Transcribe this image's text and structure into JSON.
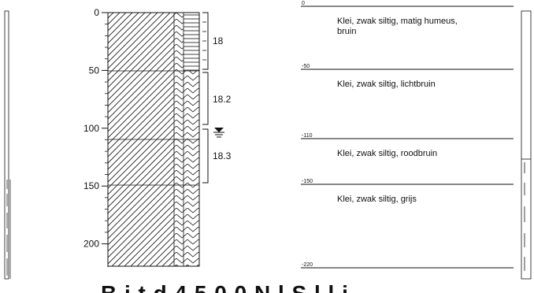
{
  "boring_log": {
    "depth_ticks": [
      "0",
      "50",
      "100",
      "150",
      "200"
    ],
    "samples": [
      {
        "label": "18"
      },
      {
        "label": "18.2"
      },
      {
        "label": "18.3"
      }
    ],
    "groundwater_symbol": "water-table-icon",
    "layers": [
      {
        "top": "0",
        "bottom_depth": 50,
        "description_line1": "Klei, zwak siltig, matig humeus,",
        "description_line2": "bruin"
      },
      {
        "top": "-50",
        "bottom_depth": 110,
        "description_line1": "Klei, zwak siltig, lichtbruin",
        "description_line2": ""
      },
      {
        "top": "-110",
        "bottom_depth": 150,
        "description_line1": "Klei, zwak siltig, roodbruin",
        "description_line2": ""
      },
      {
        "top": "-150",
        "bottom_depth": 220,
        "description_line1": "Klei, zwak siltig, grijs",
        "description_line2": ""
      }
    ],
    "final_depth": "-220"
  },
  "colors": {
    "ink": "#111111",
    "paper": "#ffffff"
  },
  "bottom_caption_partial": "B   i   t    d    4  5  0  0          N   l    S   l   l   i"
}
